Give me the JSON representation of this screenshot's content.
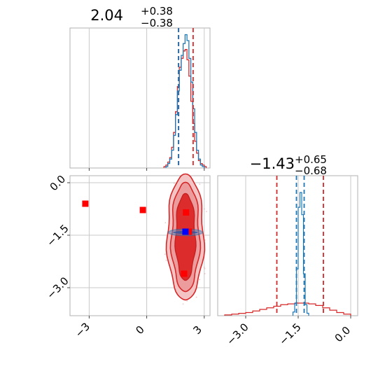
{
  "chart_data": [
    {
      "type": "histogram",
      "panel": "top-left",
      "title": {
        "value": "2.04",
        "plus": "+0.38",
        "minus": "−0.38"
      },
      "xlim": [
        -4.0,
        3.3
      ],
      "series": [
        {
          "name": "",
          "color": "#d62728",
          "bins": [
            0.9,
            1.0,
            1.1,
            1.2,
            1.3,
            1.4,
            1.5,
            1.6,
            1.7,
            1.8,
            1.9,
            2.0,
            2.1,
            2.2,
            2.3,
            2.4,
            2.5,
            2.6,
            2.7,
            2.8,
            2.9,
            3.0,
            3.1
          ],
          "counts": [
            1,
            2,
            4,
            7,
            14,
            24,
            38,
            55,
            68,
            74,
            79,
            80,
            73,
            62,
            45,
            30,
            18,
            10,
            5,
            3,
            2,
            1
          ]
        },
        {
          "name": "",
          "color": "#1f77b4",
          "bins": [
            1.0,
            1.1,
            1.2,
            1.3,
            1.4,
            1.5,
            1.6,
            1.7,
            1.8,
            1.9,
            2.0,
            2.1,
            2.2,
            2.3,
            2.4,
            2.5,
            2.6,
            2.7,
            2.8,
            2.9,
            3.0
          ],
          "counts": [
            1,
            3,
            6,
            12,
            22,
            36,
            52,
            66,
            76,
            84,
            90,
            86,
            74,
            58,
            40,
            24,
            12,
            6,
            2,
            1
          ]
        }
      ],
      "vlines": [
        {
          "x": 1.66,
          "color": "#d62728"
        },
        {
          "x": 1.66,
          "color": "#1f77b4"
        },
        {
          "x": 2.42,
          "color": "#d62728"
        }
      ]
    },
    {
      "type": "scatter",
      "panel": "bottom-left",
      "xlim": [
        -4.0,
        3.3
      ],
      "ylim": [
        -3.8,
        0.2
      ],
      "xticks": [
        {
          "v": -3,
          "label": "−3"
        },
        {
          "v": 0,
          "label": "0"
        },
        {
          "v": 3,
          "label": "3"
        }
      ],
      "yticks": [
        {
          "v": 0,
          "label": "0.0"
        },
        {
          "v": -1.5,
          "label": "−1.5"
        },
        {
          "v": -3.0,
          "label": "−3.0"
        }
      ],
      "grid": true,
      "red_markers": [
        {
          "x": -3.2,
          "y": -0.6
        },
        {
          "x": -0.2,
          "y": -0.78
        },
        {
          "x": 2.05,
          "y": -0.85
        },
        {
          "x": 2.2,
          "y": -1.4
        },
        {
          "x": 1.95,
          "y": -2.6
        }
      ],
      "blue_markers": [
        {
          "x": 2.02,
          "y": -1.4
        }
      ]
    },
    {
      "type": "histogram",
      "panel": "bottom-right",
      "title": {
        "value": "−1.43",
        "plus": "+0.65",
        "minus": "−0.68"
      },
      "xlim": [
        -3.8,
        0.2
      ],
      "xticks": [
        {
          "v": -3.0,
          "label": "−3.0"
        },
        {
          "v": -1.5,
          "label": "−1.5"
        },
        {
          "v": 0,
          "label": "0.0"
        }
      ],
      "grid": true,
      "series": [
        {
          "name": "",
          "color": "#d62728",
          "bins": [
            -3.6,
            -3.4,
            -3.2,
            -3.0,
            -2.8,
            -2.6,
            -2.4,
            -2.2,
            -2.0,
            -1.8,
            -1.6,
            -1.4,
            -1.2,
            -1.0,
            -0.8,
            -0.6,
            -0.4,
            -0.2,
            0.0
          ],
          "counts": [
            1,
            2,
            3,
            4,
            6,
            8,
            10,
            12,
            14,
            15,
            16,
            16,
            15,
            13,
            10,
            7,
            4,
            2
          ]
        },
        {
          "name": "",
          "color": "#1f77b4",
          "bins": [
            -1.65,
            -1.6,
            -1.55,
            -1.5,
            -1.45,
            -1.4,
            -1.35,
            -1.3,
            -1.25,
            -1.2
          ],
          "counts": [
            3,
            10,
            38,
            88,
            100,
            82,
            34,
            9,
            2
          ]
        }
      ],
      "vlines": [
        {
          "x": -2.11,
          "color": "#d62728"
        },
        {
          "x": -0.78,
          "color": "#d62728"
        },
        {
          "x": -1.55,
          "color": "#1f77b4"
        },
        {
          "x": -1.33,
          "color": "#1f77b4"
        }
      ]
    }
  ]
}
